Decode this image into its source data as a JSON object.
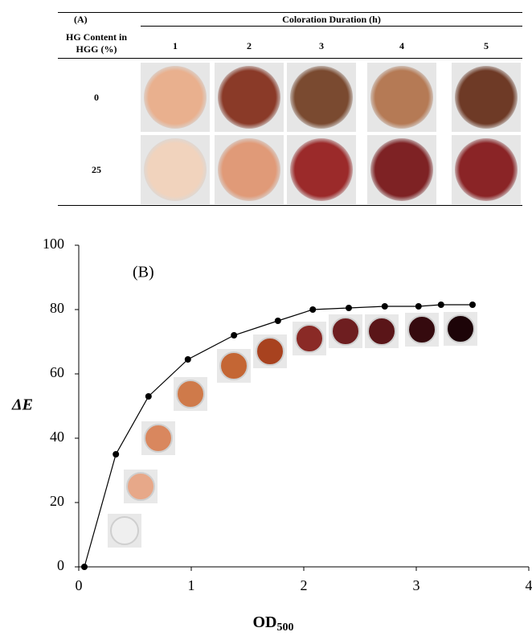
{
  "table": {
    "label": "(A)",
    "header": "Coloration Duration (h)",
    "row_header": "HG Content in HGG (%)",
    "columns": [
      1,
      2,
      3,
      4,
      5
    ],
    "rows": [
      0,
      25
    ]
  },
  "chart_data": {
    "type": "line",
    "label": "(B)",
    "x_label": "OD",
    "x_label_sub": "500",
    "y_label": "ΔE",
    "x": [
      0.05,
      0.33,
      0.62,
      0.97,
      1.38,
      1.77,
      2.08,
      2.4,
      2.72,
      3.02,
      3.22,
      3.5
    ],
    "series": [
      {
        "color": "#000000",
        "values": [
          0,
          35,
          53,
          64.5,
          72,
          76.5,
          80,
          80.5,
          81,
          81,
          81.5,
          81.5
        ]
      }
    ],
    "xlim": [
      0,
      4
    ],
    "xticks": [
      0,
      1,
      2,
      3,
      4
    ],
    "ylim": [
      0,
      100
    ],
    "yticks": [
      0,
      20,
      40,
      60,
      80,
      100
    ]
  }
}
